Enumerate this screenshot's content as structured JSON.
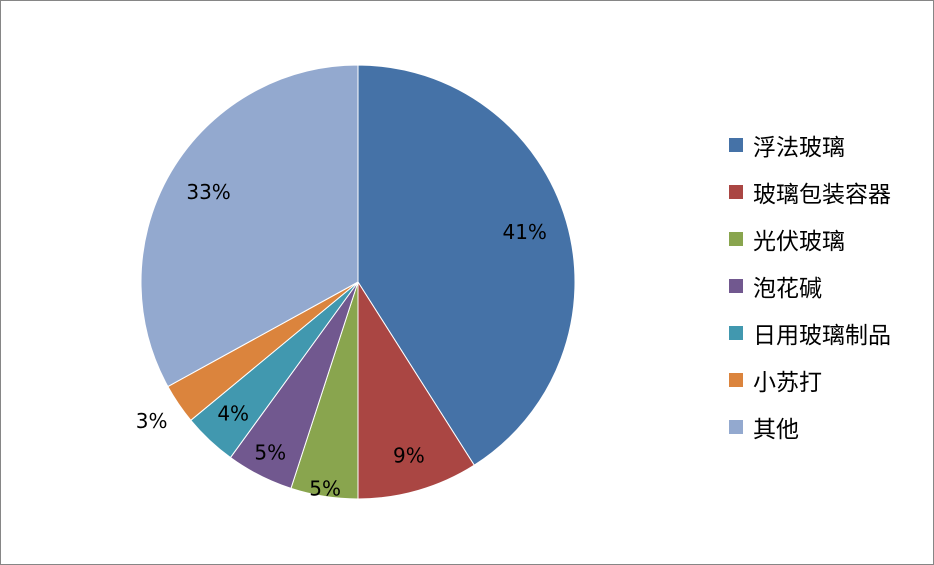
{
  "chart_data": {
    "type": "pie",
    "slices": [
      {
        "label": "浮法玻璃",
        "value": 41,
        "display": "41%",
        "color": "#4572A7"
      },
      {
        "label": "玻璃包装容器",
        "value": 9,
        "display": "9%",
        "color": "#AA4643"
      },
      {
        "label": "光伏玻璃",
        "value": 5,
        "display": "5%",
        "color": "#89A54E"
      },
      {
        "label": "泡花碱",
        "value": 5,
        "display": "5%",
        "color": "#71588F"
      },
      {
        "label": "日用玻璃制品",
        "value": 4,
        "display": "4%",
        "color": "#4198AF"
      },
      {
        "label": "小苏打",
        "value": 3,
        "display": "3%",
        "color": "#DB843D"
      },
      {
        "label": "其他",
        "value": 33,
        "display": "33%",
        "color": "#93A9CF"
      }
    ],
    "start_angle": "12 o'clock",
    "direction": "clockwise",
    "legend_position": "right"
  }
}
